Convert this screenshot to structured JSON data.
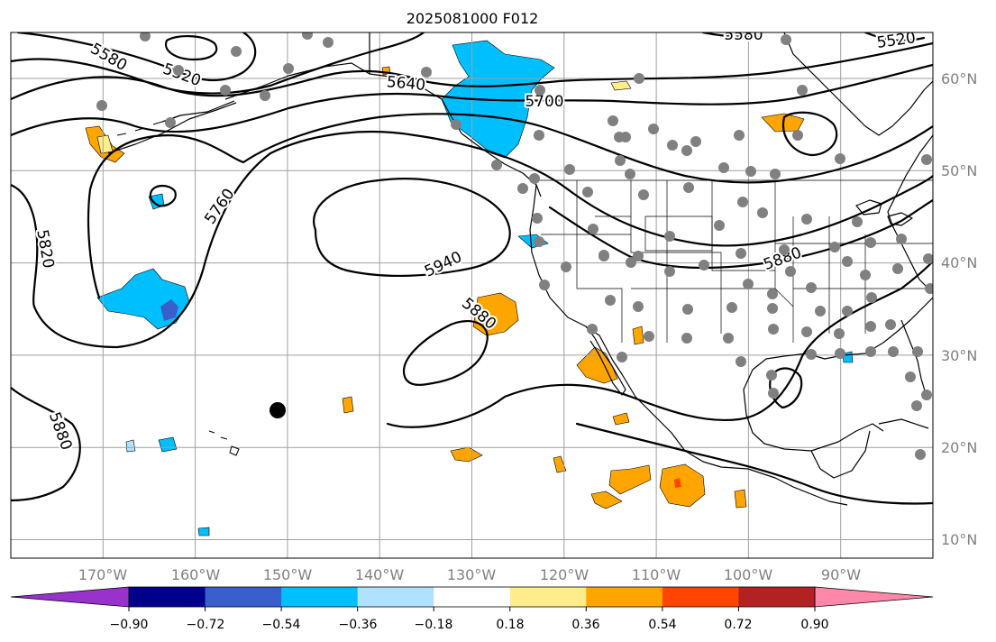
{
  "title": "2025081000 F012",
  "map": {
    "lon_range": [
      -180,
      -80
    ],
    "lat_range": [
      8,
      65
    ],
    "lon_ticks": [
      "170°W",
      "160°W",
      "150°W",
      "140°W",
      "130°W",
      "120°W",
      "110°W",
      "100°W",
      "90°W"
    ],
    "lat_ticks": [
      "10°N",
      "20°N",
      "30°N",
      "40°N",
      "50°N",
      "60°N"
    ],
    "contour_labels": [
      "5580",
      "5520",
      "5640",
      "5700",
      "5760",
      "5820",
      "5940",
      "5880",
      "5880",
      "5880",
      "5580",
      "5520"
    ],
    "gridlines": true
  },
  "colorbar": {
    "tick_labels": [
      "−0.90",
      "−0.72",
      "−0.54",
      "−0.36",
      "−0.18",
      "0.18",
      "0.36",
      "0.54",
      "0.72",
      "0.90"
    ],
    "colors": [
      "#9932cc",
      "#00008b",
      "#3a5fcd",
      "#00bfff",
      "#b0e2ff",
      "#ffffff",
      "#ffec8b",
      "#ffa500",
      "#ff4500",
      "#b22222",
      "#ff88aa"
    ]
  }
}
